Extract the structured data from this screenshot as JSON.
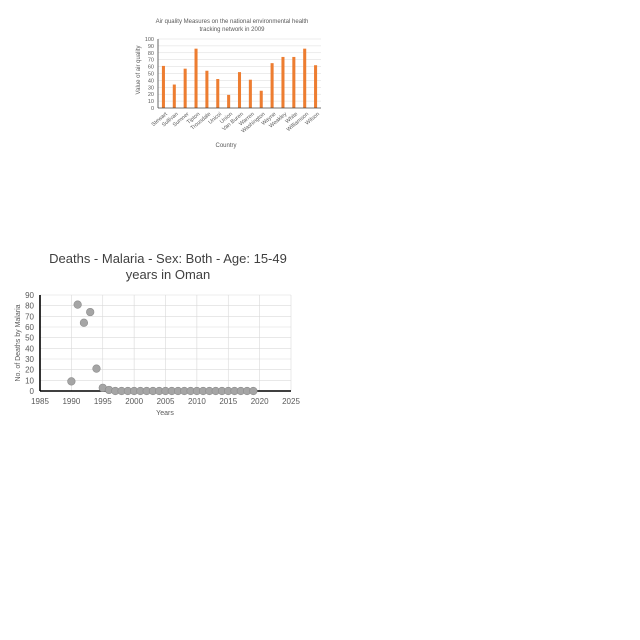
{
  "chart_data": [
    {
      "type": "bar",
      "title_lines": [
        "Air quality Measures on the national environmental health",
        "tracking network in 2009"
      ],
      "xlabel": "Country",
      "ylabel": "Value of air quality",
      "categories": [
        "Stewart",
        "Sullivan",
        "Sumner",
        "Tipton",
        "Trousdale",
        "Unicoi",
        "Union",
        "Van Buren",
        "Warren",
        "Washington",
        "Wayne",
        "Weakley",
        "White",
        "Williamson",
        "Wilson"
      ],
      "values": [
        61,
        34,
        57,
        86,
        54,
        42,
        19,
        52,
        41,
        25,
        65,
        74,
        74,
        86,
        62
      ],
      "ylim": [
        0,
        100
      ],
      "yticks": [
        "0",
        "10",
        "20",
        "30",
        "40",
        "50",
        "60",
        "70",
        "80",
        "90",
        "100"
      ],
      "grid": true,
      "bar_color": "#ed7d31"
    },
    {
      "type": "scatter",
      "title_lines": [
        "Deaths - Malaria - Sex: Both - Age: 15-49",
        "years in Oman"
      ],
      "xlabel": "Years",
      "ylabel": "No. of Deaths by Malaria",
      "x": [
        1990,
        1991,
        1992,
        1993,
        1994,
        1995,
        1996,
        1997,
        1998,
        1999,
        2000,
        2001,
        2002,
        2003,
        2004,
        2005,
        2006,
        2007,
        2008,
        2009,
        2010,
        2011,
        2012,
        2013,
        2014,
        2015,
        2016,
        2017,
        2018,
        2019
      ],
      "y": [
        9,
        81,
        64,
        74,
        21,
        3,
        1,
        0,
        0,
        0,
        0,
        0,
        0,
        0,
        0,
        0,
        0,
        0,
        0,
        0,
        0,
        0,
        0,
        0,
        0,
        0,
        0,
        0,
        0,
        0
      ],
      "xlim": [
        1985,
        2025
      ],
      "ylim": [
        0,
        90
      ],
      "xticks": [
        "1985",
        "1990",
        "1995",
        "2000",
        "2005",
        "2010",
        "2015",
        "2020",
        "2025"
      ],
      "yticks": [
        "0",
        "10",
        "20",
        "30",
        "40",
        "50",
        "60",
        "70",
        "80",
        "90"
      ],
      "grid": true,
      "marker_color": "#a5a5a5"
    }
  ]
}
